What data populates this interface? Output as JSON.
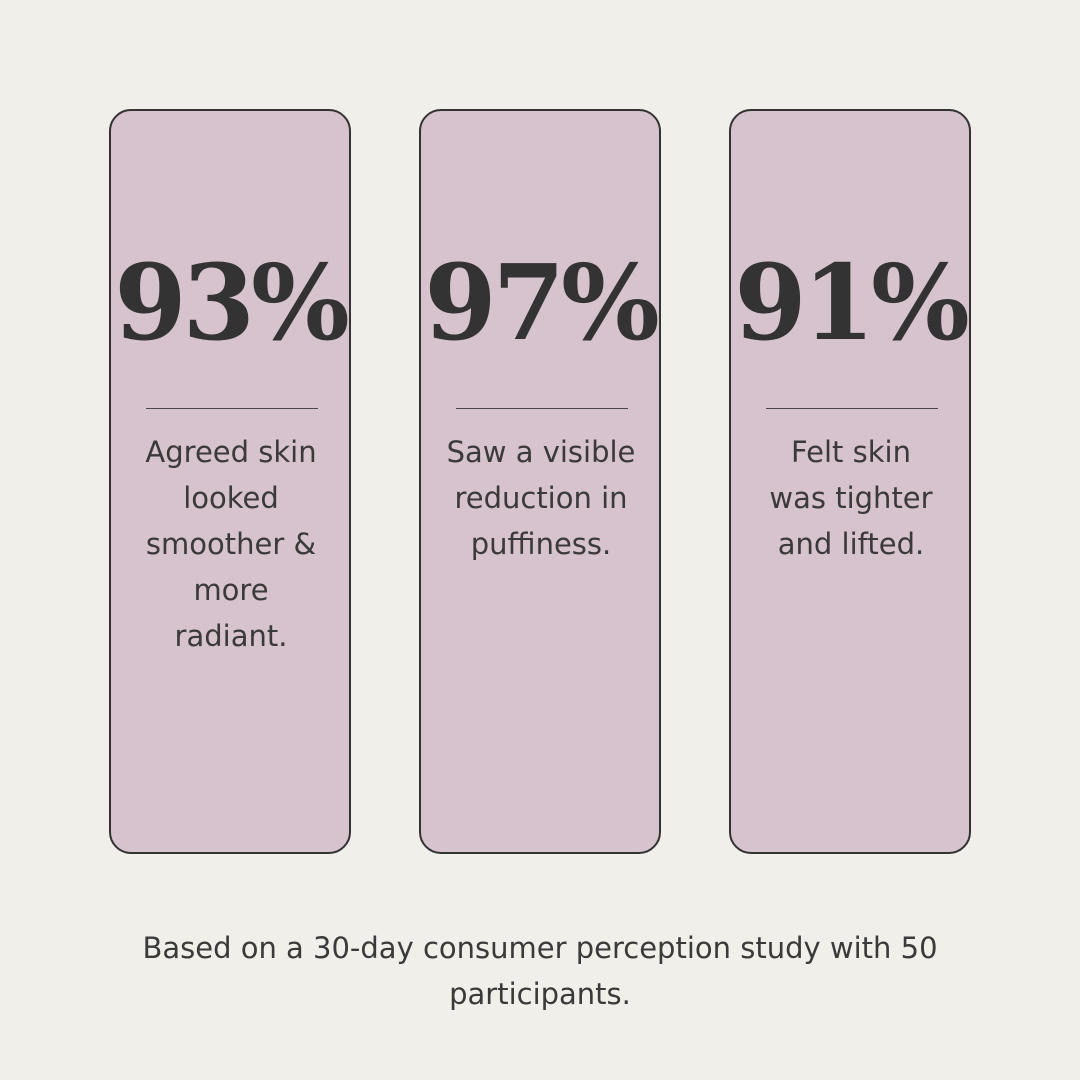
{
  "colors": {
    "background": "#f0efea",
    "card_fill": "#d6c3cd",
    "card_border": "#333333",
    "text": "#333333"
  },
  "stats": [
    {
      "value": "93%",
      "description": "Agreed skin\nlooked\nsmoother &\nmore\nradiant."
    },
    {
      "value": "97%",
      "description": "Saw a visible\nreduction in\npuffiness."
    },
    {
      "value": "91%",
      "description": "Felt skin\nwas tighter\nand lifted."
    }
  ],
  "footnote": "Based on a 30-day consumer perception study with 50\nparticipants."
}
